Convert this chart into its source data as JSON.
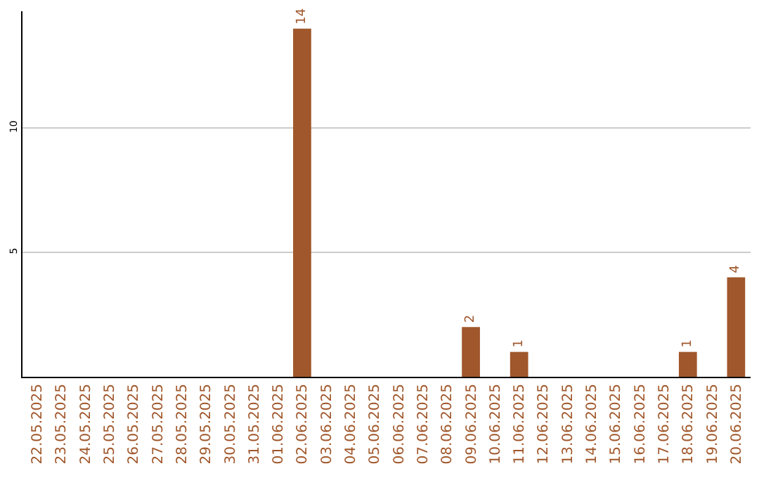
{
  "chart_data": {
    "type": "bar",
    "categories": [
      "22.05.2025",
      "23.05.2025",
      "24.05.2025",
      "25.05.2025",
      "26.05.2025",
      "27.05.2025",
      "28.05.2025",
      "29.05.2025",
      "30.05.2025",
      "31.05.2025",
      "01.06.2025",
      "02.06.2025",
      "03.06.2025",
      "04.06.2025",
      "05.06.2025",
      "06.06.2025",
      "07.06.2025",
      "08.06.2025",
      "09.06.2025",
      "10.06.2025",
      "11.06.2025",
      "12.06.2025",
      "13.06.2025",
      "14.06.2025",
      "15.06.2025",
      "16.06.2025",
      "17.06.2025",
      "18.06.2025",
      "19.06.2025",
      "20.06.2025"
    ],
    "values": [
      0,
      0,
      0,
      0,
      0,
      0,
      0,
      0,
      0,
      0,
      0,
      14,
      0,
      0,
      0,
      0,
      0,
      0,
      2,
      0,
      1,
      0,
      0,
      0,
      0,
      0,
      0,
      1,
      0,
      4
    ],
    "value_labels": [
      null,
      null,
      null,
      null,
      null,
      null,
      null,
      null,
      null,
      null,
      null,
      "14",
      null,
      null,
      null,
      null,
      null,
      null,
      "2",
      null,
      "1",
      null,
      null,
      null,
      null,
      null,
      null,
      "1",
      null,
      "4"
    ],
    "color": "#a0572b",
    "ylim": [
      0,
      14.7
    ],
    "yticks": [
      5,
      10
    ],
    "grid": "y",
    "legend": false
  }
}
